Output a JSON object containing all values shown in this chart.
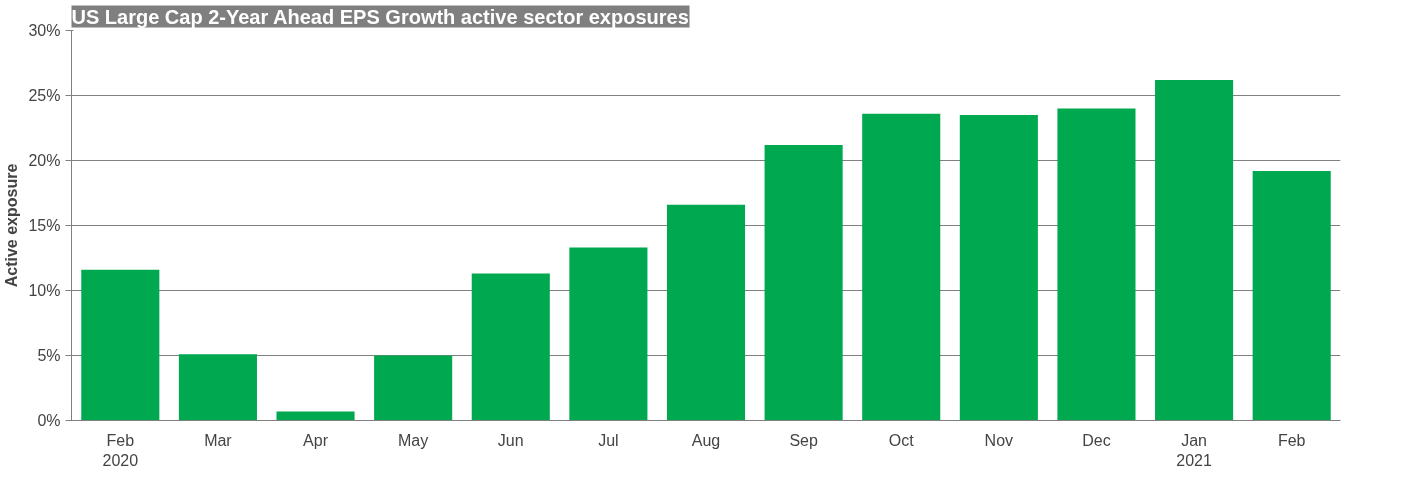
{
  "chart_data": {
    "type": "bar",
    "title": "US Large Cap 2-Year Ahead EPS Growth active sector exposures",
    "ylabel": "Active exposure",
    "categories": [
      "Feb\n2020",
      "Mar",
      "Apr",
      "May",
      "Jun",
      "Jul",
      "Aug",
      "Sep",
      "Oct",
      "Nov",
      "Dec",
      "Jan\n2021",
      "Feb"
    ],
    "values": [
      11.6,
      5.1,
      0.7,
      5.0,
      11.3,
      13.3,
      16.6,
      21.2,
      23.6,
      23.5,
      24.0,
      26.2,
      19.2
    ],
    "color": "#00a94f",
    "ylim": [
      0,
      30
    ],
    "yticks": [
      {
        "value": 0,
        "label": "0%"
      },
      {
        "value": 5,
        "label": "5%"
      },
      {
        "value": 10,
        "label": "10%"
      },
      {
        "value": 15,
        "label": "15%"
      },
      {
        "value": 20,
        "label": "20%"
      },
      {
        "value": 25,
        "label": "25%"
      },
      {
        "value": 30,
        "label": "30%"
      }
    ],
    "grid": "y"
  }
}
